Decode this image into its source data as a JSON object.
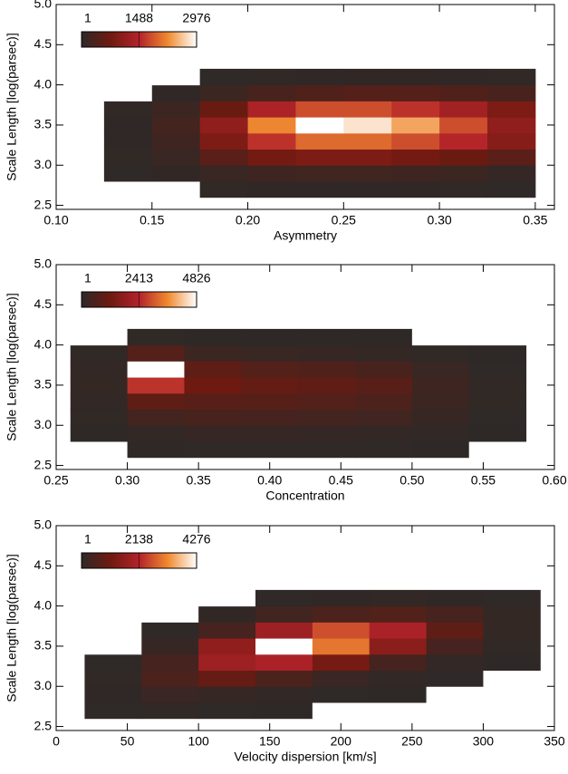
{
  "chart_data": [
    {
      "type": "heatmap",
      "xlabel": "Asymmetry",
      "ylabel": "Scale Length [log(parsec)]",
      "xlim": [
        0.1,
        0.36
      ],
      "ylim": [
        2.45,
        5.0
      ],
      "xticks": [
        {
          "value": 0.1,
          "label": "0.10"
        },
        0.15,
        {
          "value": 0.2,
          "label": "0.20"
        },
        0.25,
        {
          "value": 0.3,
          "label": "0.30"
        },
        0.35
      ],
      "yticks": [
        2.5,
        {
          "value": 3,
          "label": "3.0"
        },
        3.5,
        {
          "value": 4,
          "label": "4.0"
        },
        4.5,
        {
          "value": 5,
          "label": "5.0"
        }
      ],
      "x_edges": [
        0.125,
        0.15,
        0.175,
        0.2,
        0.225,
        0.25,
        0.275,
        0.3,
        0.325,
        0.35
      ],
      "y_edges": [
        2.6,
        2.8,
        3.0,
        3.2,
        3.4,
        3.6,
        3.8,
        4.0,
        4.2
      ],
      "z": [
        [
          0,
          0,
          20,
          30,
          30,
          30,
          30,
          20,
          10
        ],
        [
          10,
          40,
          120,
          200,
          220,
          220,
          200,
          150,
          80
        ],
        [
          20,
          120,
          500,
          800,
          900,
          900,
          800,
          700,
          500
        ],
        [
          30,
          200,
          900,
          1600,
          2000,
          2000,
          1800,
          1500,
          1000
        ],
        [
          30,
          250,
          1100,
          2200,
          2976,
          2800,
          2400,
          1800,
          1100
        ],
        [
          20,
          150,
          700,
          1400,
          1800,
          1800,
          1600,
          1300,
          900
        ],
        [
          0,
          30,
          150,
          300,
          400,
          450,
          450,
          400,
          300
        ],
        [
          0,
          0,
          10,
          20,
          30,
          40,
          40,
          30,
          20
        ]
      ],
      "colorbar": {
        "range": [
          1,
          2976
        ],
        "ticks": [
          1,
          1488,
          2976
        ]
      },
      "colormap": [
        "#2e2927",
        "#6e1a10",
        "#b3232a",
        "#f08a30",
        "#ffffff"
      ]
    },
    {
      "type": "heatmap",
      "xlabel": "Concentration",
      "ylabel": "Scale Length [log(parsec)]",
      "xlim": [
        0.25,
        0.6
      ],
      "ylim": [
        2.45,
        5.0
      ],
      "xticks": [
        0.25,
        {
          "value": 0.3,
          "label": "0.30"
        },
        0.35,
        {
          "value": 0.4,
          "label": "0.40"
        },
        0.45,
        {
          "value": 0.5,
          "label": "0.50"
        },
        0.55,
        {
          "value": 0.6,
          "label": "0.60"
        }
      ],
      "yticks": [
        2.5,
        {
          "value": 3,
          "label": "3.0"
        },
        3.5,
        {
          "value": 4,
          "label": "4.0"
        },
        4.5,
        {
          "value": 5,
          "label": "5.0"
        }
      ],
      "x_edges": [
        0.26,
        0.3,
        0.34,
        0.38,
        0.42,
        0.46,
        0.5,
        0.54,
        0.58
      ],
      "y_edges": [
        2.6,
        2.8,
        3.0,
        3.2,
        3.4,
        3.6,
        3.8,
        4.0,
        4.2
      ],
      "z": [
        [
          0,
          10,
          20,
          20,
          20,
          15,
          5,
          0
        ],
        [
          10,
          80,
          150,
          150,
          130,
          100,
          40,
          5
        ],
        [
          40,
          400,
          500,
          450,
          420,
          350,
          150,
          20
        ],
        [
          80,
          900,
          800,
          750,
          700,
          600,
          250,
          30
        ],
        [
          120,
          2600,
          1200,
          1000,
          950,
          800,
          300,
          30
        ],
        [
          100,
          4826,
          900,
          700,
          650,
          500,
          200,
          20
        ],
        [
          40,
          700,
          250,
          200,
          180,
          120,
          40,
          5
        ],
        [
          0,
          30,
          10,
          10,
          10,
          5,
          0,
          0
        ]
      ],
      "colorbar": {
        "range": [
          1,
          4826
        ],
        "ticks": [
          1,
          2413,
          4826
        ]
      },
      "colormap": [
        "#2e2927",
        "#6e1a10",
        "#b3232a",
        "#f08a30",
        "#ffffff"
      ]
    },
    {
      "type": "heatmap",
      "xlabel": "Velocity dispersion [km/s]",
      "ylabel": "Scale Length [log(parsec)]",
      "xlim": [
        0,
        350
      ],
      "ylim": [
        2.45,
        5.0
      ],
      "xticks": [
        0,
        50,
        100,
        150,
        200,
        250,
        300,
        350
      ],
      "yticks": [
        2.5,
        {
          "value": 3,
          "label": "3.0"
        },
        3.5,
        {
          "value": 4,
          "label": "4.0"
        },
        4.5,
        {
          "value": 5,
          "label": "5.0"
        }
      ],
      "x_edges": [
        20,
        60,
        100,
        140,
        180,
        220,
        260,
        300,
        340
      ],
      "y_edges": [
        2.6,
        2.8,
        3.0,
        3.2,
        3.4,
        3.6,
        3.8,
        4.0,
        4.2
      ],
      "z": [
        [
          10,
          30,
          20,
          5,
          0,
          0,
          0,
          0
        ],
        [
          40,
          200,
          150,
          60,
          20,
          5,
          0,
          0
        ],
        [
          30,
          500,
          900,
          500,
          200,
          60,
          10,
          0
        ],
        [
          10,
          400,
          1800,
          2000,
          1200,
          400,
          80,
          5
        ],
        [
          0,
          150,
          1600,
          4276,
          3000,
          1500,
          400,
          30
        ],
        [
          0,
          20,
          400,
          1800,
          2600,
          2000,
          800,
          100
        ],
        [
          0,
          0,
          50,
          300,
          500,
          600,
          400,
          100
        ],
        [
          0,
          0,
          0,
          20,
          40,
          60,
          40,
          10
        ]
      ],
      "colorbar": {
        "range": [
          1,
          4276
        ],
        "ticks": [
          1,
          2138,
          4276
        ]
      },
      "colormap": [
        "#2e2927",
        "#6e1a10",
        "#b3232a",
        "#f08a30",
        "#ffffff"
      ]
    }
  ]
}
